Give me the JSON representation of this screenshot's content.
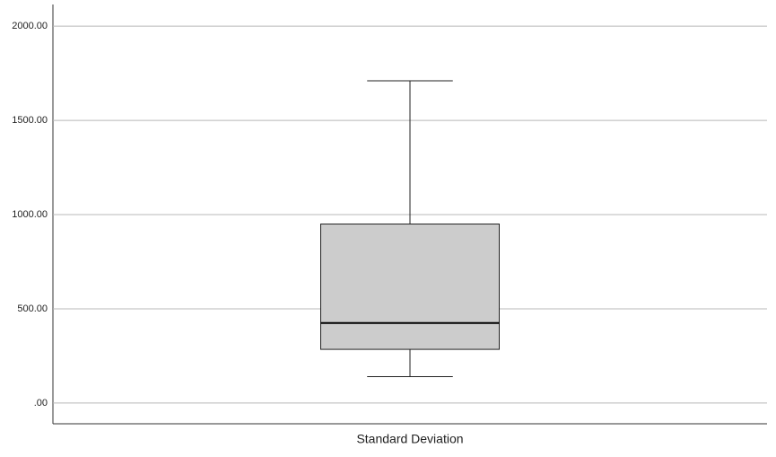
{
  "chart_data": {
    "type": "box",
    "categories": [
      "Standard Deviation"
    ],
    "boxes": [
      {
        "min": 140,
        "q1": 285,
        "median": 425,
        "q3": 950,
        "max": 1710
      }
    ],
    "color": "#cccccc",
    "ylim": [
      -110,
      2115
    ],
    "yticks": [
      {
        "value": 0,
        "label": ".00"
      },
      {
        "value": 500,
        "label": "500.00"
      },
      {
        "value": 1000,
        "label": "1000.00"
      },
      {
        "value": 1500,
        "label": "1500.00"
      },
      {
        "value": 2000,
        "label": "2000.00"
      }
    ],
    "grid": true
  }
}
